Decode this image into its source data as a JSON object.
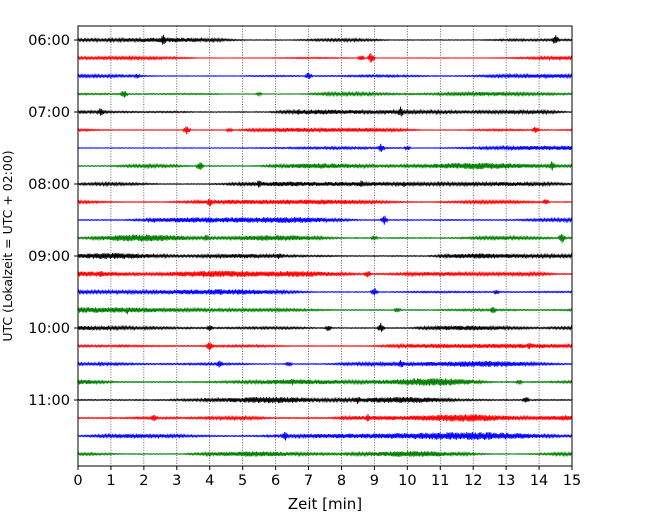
{
  "chart_data": {
    "type": "line",
    "title": "",
    "xlabel": "Zeit  [min]",
    "ylabel": "UTC (Lokalzeit = UTC + 02:00)",
    "xlim": [
      0,
      15
    ],
    "x_ticks": [
      "0",
      "1",
      "2",
      "3",
      "4",
      "5",
      "6",
      "7",
      "8",
      "9",
      "10",
      "11",
      "12",
      "13",
      "14",
      "15"
    ],
    "y_tick_labels": [
      "06:00",
      "07:00",
      "08:00",
      "09:00",
      "10:00",
      "11:00"
    ],
    "vertical_grid": true,
    "trace_colors": [
      "#000000",
      "#ff0000",
      "#0000ff",
      "#008000"
    ],
    "traces": [
      {
        "start": "06:00",
        "amplitude": 0.35,
        "events": [
          [
            2.6,
            1.0
          ],
          [
            14.5,
            0.9
          ]
        ]
      },
      {
        "start": "06:15",
        "amplitude": 0.25,
        "events": [
          [
            8.9,
            0.9
          ],
          [
            8.6,
            0.5
          ]
        ]
      },
      {
        "start": "06:30",
        "amplitude": 0.3,
        "events": [
          [
            7.0,
            0.6
          ],
          [
            1.8,
            0.4
          ]
        ]
      },
      {
        "start": "06:45",
        "amplitude": 0.3,
        "events": [
          [
            1.4,
            0.7
          ],
          [
            5.5,
            0.3
          ]
        ]
      },
      {
        "start": "07:00",
        "amplitude": 0.4,
        "events": [
          [
            0.7,
            0.8
          ],
          [
            9.8,
            0.9
          ],
          [
            6.7,
            0.5
          ]
        ]
      },
      {
        "start": "07:15",
        "amplitude": 0.35,
        "events": [
          [
            3.3,
            0.8
          ],
          [
            13.9,
            0.7
          ],
          [
            4.6,
            0.4
          ]
        ]
      },
      {
        "start": "07:30",
        "amplitude": 0.3,
        "events": [
          [
            9.2,
            0.7
          ],
          [
            10.0,
            0.4
          ]
        ]
      },
      {
        "start": "07:45",
        "amplitude": 0.45,
        "events": [
          [
            3.7,
            0.8
          ],
          [
            14.4,
            0.8
          ],
          [
            7.3,
            0.5
          ]
        ]
      },
      {
        "start": "08:00",
        "amplitude": 0.4,
        "events": [
          [
            5.5,
            0.7
          ],
          [
            8.6,
            0.6
          ],
          [
            9.9,
            0.5
          ]
        ]
      },
      {
        "start": "08:15",
        "amplitude": 0.4,
        "events": [
          [
            4.0,
            0.8
          ],
          [
            14.2,
            0.6
          ],
          [
            7.0,
            0.4
          ]
        ]
      },
      {
        "start": "08:30",
        "amplitude": 0.45,
        "events": [
          [
            9.3,
            0.8
          ],
          [
            2.3,
            0.5
          ]
        ]
      },
      {
        "start": "08:45",
        "amplitude": 0.5,
        "events": [
          [
            14.7,
            0.9
          ],
          [
            3.9,
            0.6
          ],
          [
            9.0,
            0.5
          ]
        ]
      },
      {
        "start": "09:00",
        "amplitude": 0.45,
        "events": [
          [
            6.1,
            0.6
          ],
          [
            12.3,
            0.4
          ]
        ]
      },
      {
        "start": "09:15",
        "amplitude": 0.5,
        "events": [
          [
            0.7,
            0.6
          ],
          [
            8.8,
            0.6
          ]
        ]
      },
      {
        "start": "09:30",
        "amplitude": 0.4,
        "events": [
          [
            9.0,
            0.7
          ],
          [
            12.7,
            0.4
          ]
        ]
      },
      {
        "start": "09:45",
        "amplitude": 0.5,
        "events": [
          [
            1.5,
            0.7
          ],
          [
            12.6,
            0.6
          ],
          [
            9.7,
            0.5
          ]
        ]
      },
      {
        "start": "10:00",
        "amplitude": 0.45,
        "events": [
          [
            9.2,
            0.8
          ],
          [
            7.6,
            0.5
          ],
          [
            4.0,
            0.5
          ]
        ]
      },
      {
        "start": "10:15",
        "amplitude": 0.4,
        "events": [
          [
            4.0,
            0.8
          ],
          [
            13.7,
            0.7
          ]
        ]
      },
      {
        "start": "10:30",
        "amplitude": 0.4,
        "events": [
          [
            4.3,
            0.6
          ],
          [
            9.8,
            0.8
          ],
          [
            6.4,
            0.5
          ]
        ]
      },
      {
        "start": "10:45",
        "amplitude": 0.55,
        "events": [
          [
            6.5,
            0.6
          ],
          [
            13.4,
            0.5
          ]
        ]
      },
      {
        "start": "11:00",
        "amplitude": 0.55,
        "events": [
          [
            8.5,
            0.8
          ],
          [
            13.6,
            0.6
          ],
          [
            3.9,
            0.4
          ]
        ]
      },
      {
        "start": "11:15",
        "amplitude": 0.6,
        "events": [
          [
            2.3,
            0.6
          ],
          [
            8.8,
            0.7
          ],
          [
            14.8,
            0.5
          ]
        ]
      },
      {
        "start": "11:30",
        "amplitude": 0.55,
        "events": [
          [
            6.3,
            0.8
          ],
          [
            12.4,
            0.6
          ]
        ]
      },
      {
        "start": "11:45",
        "amplitude": 0.4,
        "events": [
          [
            5.1,
            0.6
          ],
          [
            9.9,
            0.5
          ]
        ]
      }
    ]
  }
}
